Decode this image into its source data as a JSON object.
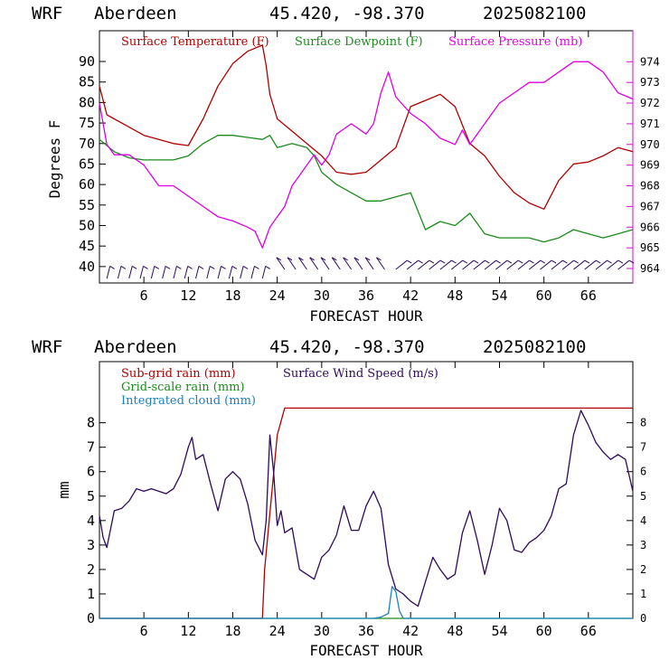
{
  "header": {
    "model": "WRF",
    "station": "Aberdeen",
    "coords": "45.420, -98.370",
    "run": "2025082100"
  },
  "colors": {
    "temperature": "#b00000",
    "dewpoint": "#1a8c1a",
    "pressure": "#e000e0",
    "subgrid_rain": "#b00000",
    "grid_rain": "#1a8c1a",
    "cloud": "#1b7fc4",
    "wind": "#2e0a5c"
  },
  "chart_data": [
    {
      "type": "line",
      "xlabel": "FORECAST HOUR",
      "ylabel": "Degrees F",
      "x_ticks": [
        "6",
        "12",
        "18",
        "24",
        "30",
        "36",
        "42",
        "48",
        "54",
        "60",
        "66"
      ],
      "y_ticks": [
        "40",
        "45",
        "50",
        "55",
        "60",
        "65",
        "70",
        "75",
        "80",
        "85",
        "90"
      ],
      "y2_ticks": [
        "964",
        "965",
        "966",
        "967",
        "968",
        "969",
        "970",
        "971",
        "972",
        "973",
        "974"
      ],
      "xlim": [
        0,
        72
      ],
      "ylim": [
        36,
        97.5
      ],
      "y2lim": [
        963.3,
        975.5
      ],
      "legend": [
        "Surface Temperature (F)",
        "Surface Dewpoint (F)",
        "Surface Pressure (mb)"
      ],
      "series": [
        {
          "name": "Surface Temperature (F)",
          "axis": "left",
          "x": [
            0,
            1,
            2,
            4,
            6,
            8,
            10,
            12,
            14,
            16,
            18,
            20,
            22,
            22.5,
            23,
            24,
            26,
            28,
            30,
            32,
            34,
            36,
            38,
            40,
            42,
            44,
            46,
            48,
            50,
            52,
            54,
            56,
            58,
            60,
            62,
            64,
            66,
            68,
            70,
            72
          ],
          "y": [
            84,
            77,
            76,
            74,
            72,
            71,
            70,
            69.5,
            76,
            84,
            89.5,
            92.5,
            94,
            89,
            82,
            76,
            73,
            70,
            67,
            63,
            62.5,
            63,
            66,
            69,
            79,
            80.5,
            82,
            79,
            70,
            67,
            62,
            58,
            55.5,
            54,
            61,
            65,
            65.5,
            67,
            69,
            68
          ]
        },
        {
          "name": "Surface Dewpoint (F)",
          "axis": "left",
          "x": [
            0,
            2,
            4,
            6,
            8,
            10,
            12,
            14,
            16,
            18,
            20,
            22,
            23,
            24,
            26,
            28,
            29,
            30,
            32,
            34,
            36,
            38,
            40,
            42,
            44,
            46,
            48,
            50,
            52,
            54,
            56,
            58,
            60,
            62,
            64,
            66,
            68,
            70,
            72
          ],
          "y": [
            71,
            68,
            66.5,
            66,
            66,
            66,
            67,
            70,
            72,
            72,
            71.5,
            71,
            72,
            69,
            70,
            69,
            67,
            63,
            60,
            58,
            56,
            56,
            57,
            58,
            49,
            51,
            50,
            53,
            48,
            47,
            47,
            47,
            46,
            47,
            49,
            48,
            47,
            48,
            49
          ]
        },
        {
          "name": "Surface Pressure (mb)",
          "axis": "right",
          "x": [
            0,
            1,
            2,
            4,
            6,
            8,
            10,
            12,
            14,
            16,
            18,
            20,
            21,
            22,
            23,
            24,
            25,
            26,
            27,
            28,
            29,
            30,
            31,
            32,
            34,
            36,
            37,
            38,
            39,
            40,
            42,
            44,
            46,
            48,
            49,
            50,
            52,
            54,
            56,
            58,
            60,
            62,
            64,
            66,
            68,
            70,
            72
          ],
          "y": [
            972,
            970,
            969.5,
            969.5,
            969,
            968,
            968,
            967.5,
            967,
            966.5,
            966.3,
            966,
            965.8,
            965,
            966,
            966.5,
            967,
            968,
            968.5,
            969,
            969.5,
            969,
            969.5,
            970.5,
            971,
            970.5,
            971,
            972.5,
            973.5,
            972.3,
            971.5,
            971,
            970.3,
            970,
            970.7,
            970,
            971,
            972,
            972.5,
            973,
            973,
            973.5,
            974,
            974,
            973.5,
            972.5,
            972.2
          ]
        }
      ],
      "wind_barbs": "row of wind barbs along bottom"
    },
    {
      "type": "line",
      "xlabel": "FORECAST HOUR",
      "ylabel": "mm",
      "x_ticks": [
        "6",
        "12",
        "18",
        "24",
        "30",
        "36",
        "42",
        "48",
        "54",
        "60",
        "66"
      ],
      "y_ticks": [
        "0",
        "1",
        "2",
        "3",
        "4",
        "5",
        "6",
        "7",
        "8"
      ],
      "y2_ticks": [
        "0",
        "1",
        "2",
        "3",
        "4",
        "5",
        "6",
        "7",
        "8"
      ],
      "xlim": [
        0,
        72
      ],
      "ylim": [
        0,
        10.5
      ],
      "y2lim": [
        0,
        10.5
      ],
      "legend": [
        "Sub-grid rain (mm)",
        "Surface Wind Speed (m/s)",
        "Grid-scale rain (mm)",
        "Integrated cloud (mm)"
      ],
      "series": [
        {
          "name": "Sub-grid rain (mm)",
          "axis": "left",
          "x": [
            0,
            22,
            22.3,
            24,
            25,
            72
          ],
          "y": [
            0,
            0,
            2,
            7.5,
            8.6,
            8.6
          ]
        },
        {
          "name": "Surface Wind Speed (m/s)",
          "axis": "right",
          "x": [
            0,
            0.5,
            1,
            2,
            3,
            4,
            5,
            6,
            7,
            8,
            9,
            10,
            11,
            12,
            12.5,
            13,
            14,
            15,
            16,
            17,
            18,
            19,
            20,
            21,
            22,
            22.5,
            23,
            23.5,
            24,
            24.5,
            25,
            26,
            27,
            28,
            29,
            30,
            31,
            32,
            33,
            34,
            35,
            36,
            37,
            38,
            39,
            40,
            41,
            42,
            43,
            44,
            45,
            46,
            47,
            48,
            49,
            50,
            51,
            52,
            53,
            54,
            55,
            56,
            57,
            58,
            59,
            60,
            61,
            62,
            63,
            64,
            65,
            66,
            67,
            68,
            69,
            70,
            71,
            72
          ],
          "y": [
            4.2,
            3.3,
            2.9,
            4.4,
            4.5,
            4.8,
            5.3,
            5.2,
            5.3,
            5.2,
            5.1,
            5.3,
            5.9,
            7.0,
            7.4,
            6.5,
            6.7,
            5.5,
            4.4,
            5.7,
            6.0,
            5.7,
            4.7,
            3.2,
            2.6,
            4.0,
            7.5,
            6.0,
            3.8,
            4.4,
            3.5,
            3.7,
            2.0,
            1.8,
            1.6,
            2.5,
            2.8,
            3.4,
            4.6,
            3.6,
            3.6,
            4.6,
            5.2,
            4.5,
            2.2,
            1.2,
            1.0,
            0.7,
            0.5,
            1.5,
            2.5,
            2.0,
            1.6,
            1.8,
            3.5,
            4.4,
            3.2,
            1.8,
            3.0,
            4.5,
            4.0,
            2.8,
            2.7,
            3.1,
            3.3,
            3.6,
            4.2,
            5.3,
            5.5,
            7.5,
            8.5,
            7.9,
            7.2,
            6.8,
            6.5,
            6.7,
            6.5,
            5.2
          ]
        },
        {
          "name": "Grid-scale rain (mm)",
          "axis": "left",
          "x": [
            0,
            72
          ],
          "y": [
            0,
            0
          ]
        },
        {
          "name": "Integrated cloud (mm)",
          "axis": "left",
          "x": [
            0,
            37,
            38,
            39,
            39.5,
            40,
            40.5,
            41,
            72
          ],
          "y": [
            0,
            0,
            0.05,
            0.2,
            1.3,
            1.1,
            0.3,
            0,
            0
          ]
        }
      ]
    }
  ]
}
